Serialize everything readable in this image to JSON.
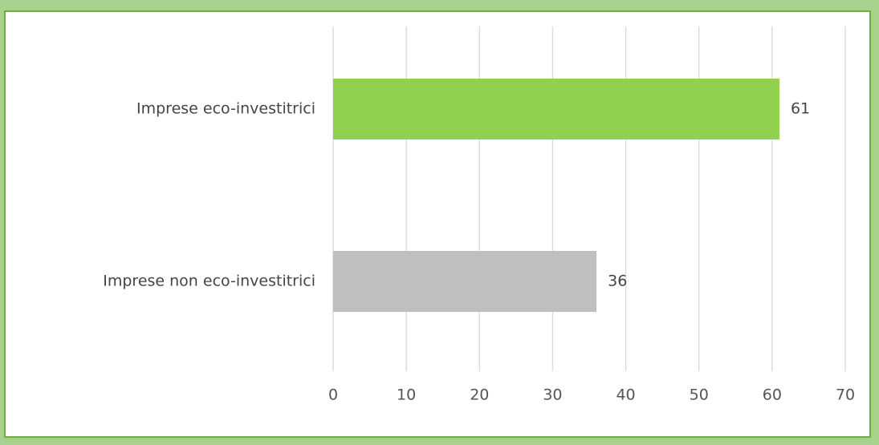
{
  "chart_data": {
    "type": "bar",
    "orientation": "horizontal",
    "title": "",
    "xlabel": "",
    "ylabel": "",
    "categories": [
      "Imprese eco-investitrici",
      "Imprese non eco-investitrici"
    ],
    "values": [
      61,
      36
    ],
    "data_labels": [
      "61",
      "36"
    ],
    "bar_colors": [
      "#92d050",
      "#bfbfbf"
    ],
    "xlim": [
      0,
      70
    ],
    "xticks": [
      0,
      10,
      20,
      30,
      40,
      50,
      60,
      70
    ],
    "xtick_labels": [
      "0",
      "10",
      "20",
      "30",
      "40",
      "50",
      "60",
      "70"
    ],
    "grid": "vertical",
    "legend": "none"
  },
  "colors": {
    "page_background": "#a9d18e",
    "frame_border": "#70ad47",
    "gridline": "#d9d9d9"
  }
}
